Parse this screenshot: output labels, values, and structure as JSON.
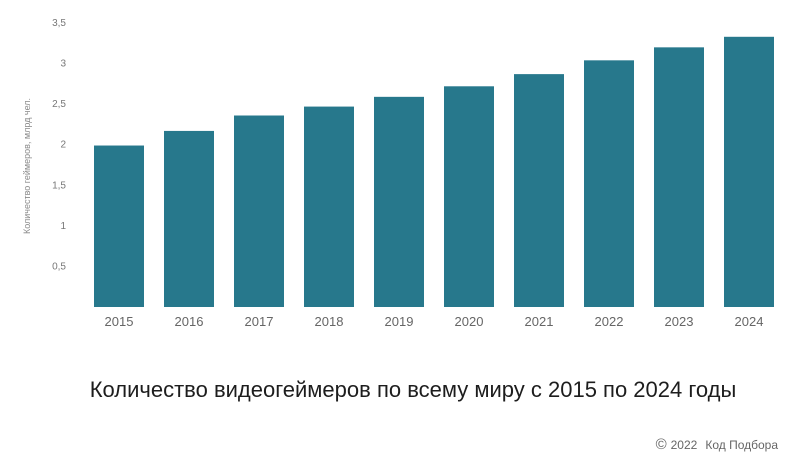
{
  "chart_data": {
    "type": "bar",
    "title": "Количество видеогеймеров по всему миру с 2015 по 2024 годы",
    "ylabel": "Количество геймеров, млрд чел.",
    "xlabel": "",
    "categories": [
      "2015",
      "2016",
      "2017",
      "2018",
      "2019",
      "2020",
      "2021",
      "2022",
      "2023",
      "2024"
    ],
    "values": [
      1.99,
      2.17,
      2.36,
      2.47,
      2.59,
      2.72,
      2.87,
      3.04,
      3.2,
      3.33
    ],
    "ylim": [
      0,
      3.5
    ],
    "yticks": [
      "0,5",
      "1",
      "1,5",
      "2",
      "2,5",
      "3",
      "3,5"
    ],
    "ytick_values": [
      0.5,
      1,
      1.5,
      2,
      2.5,
      3,
      3.5
    ],
    "grid": false,
    "bar_color": "#27788c"
  },
  "footer": {
    "copyright_symbol": "©",
    "year": "2022",
    "brand": "Код Подбора"
  }
}
